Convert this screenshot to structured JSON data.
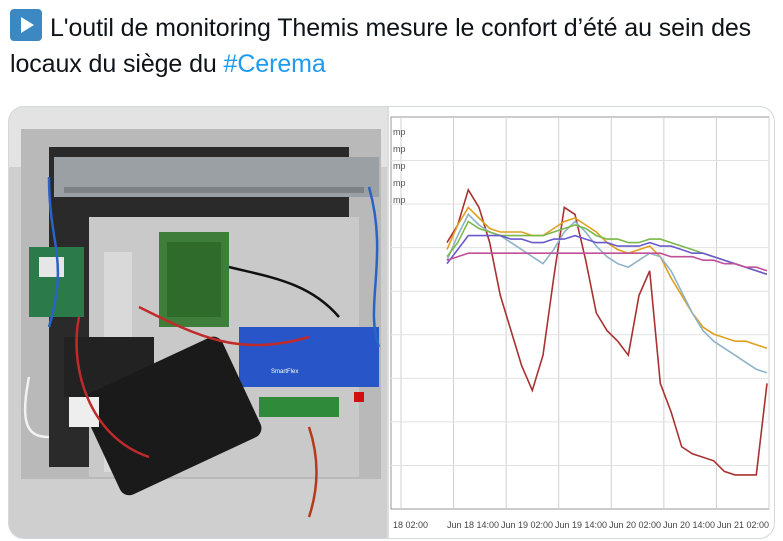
{
  "tweet": {
    "icon": "play-button-icon",
    "text": "L'outil de monitoring Themis mesure le confort d’été au sein des locaux du siège du",
    "hashtag": "#Cerema"
  },
  "photo": {
    "description_icon": "electronics-enclosure-photo",
    "device_label": "SmartFlex"
  },
  "chart_data": {
    "type": "line",
    "legend_entries": [
      "mp",
      "mp",
      "mp",
      "mp",
      "mp"
    ],
    "x_ticks": [
      "18 02:00",
      "Jun 18 14:00",
      "Jun 19 02:00",
      "Jun 19 14:00",
      "Jun 20 02:00",
      "Jun 20 14:00",
      "Jun 21 02:00"
    ],
    "x_index": [
      0,
      1,
      2,
      3,
      4,
      5,
      6,
      7,
      8,
      9,
      10,
      11,
      12,
      13,
      14,
      15,
      16,
      17,
      18,
      19,
      20,
      21,
      22,
      23,
      24,
      25,
      26,
      27,
      28,
      29,
      30
    ],
    "ylim": [
      0,
      100
    ],
    "series": [
      {
        "color": "#a83232",
        "values": [
          70,
          75,
          85,
          80,
          70,
          55,
          45,
          35,
          28,
          38,
          60,
          80,
          78,
          65,
          50,
          45,
          42,
          38,
          55,
          62,
          30,
          22,
          12,
          10,
          9,
          8,
          5,
          4,
          4,
          4,
          30
        ]
      },
      {
        "color": "#e0a020",
        "values": [
          68,
          75,
          80,
          77,
          74,
          73,
          73,
          73,
          72,
          72,
          74,
          76,
          77,
          75,
          73,
          70,
          68,
          67,
          68,
          69,
          66,
          60,
          55,
          50,
          46,
          44,
          43,
          42,
          42,
          41,
          40
        ]
      },
      {
        "color": "#8fb3c8",
        "values": [
          65,
          72,
          78,
          75,
          73,
          72,
          70,
          68,
          66,
          64,
          68,
          73,
          76,
          73,
          69,
          66,
          64,
          63,
          65,
          67,
          66,
          62,
          56,
          50,
          45,
          42,
          40,
          38,
          36,
          34,
          33
        ]
      },
      {
        "color": "#7ab84a",
        "values": [
          66,
          70,
          76,
          74,
          73,
          72,
          72,
          72,
          72,
          72,
          73,
          74,
          75,
          74,
          72,
          71,
          71,
          70,
          70,
          71,
          71,
          70,
          69,
          68,
          67,
          66,
          65,
          64,
          63,
          62,
          61
        ]
      },
      {
        "color": "#6a5acd",
        "values": [
          64,
          68,
          72,
          72,
          72,
          72,
          71,
          71,
          70,
          70,
          71,
          71,
          72,
          71,
          70,
          70,
          69,
          69,
          69,
          70,
          69,
          69,
          68,
          67,
          67,
          66,
          65,
          64,
          63,
          62,
          61
        ]
      },
      {
        "color": "#c0509a",
        "values": [
          65,
          66,
          67,
          67,
          67,
          67,
          67,
          67,
          67,
          67,
          67,
          67,
          67,
          67,
          67,
          67,
          67,
          67,
          67,
          67,
          67,
          66,
          66,
          66,
          65,
          65,
          64,
          64,
          63,
          63,
          62
        ]
      }
    ]
  }
}
